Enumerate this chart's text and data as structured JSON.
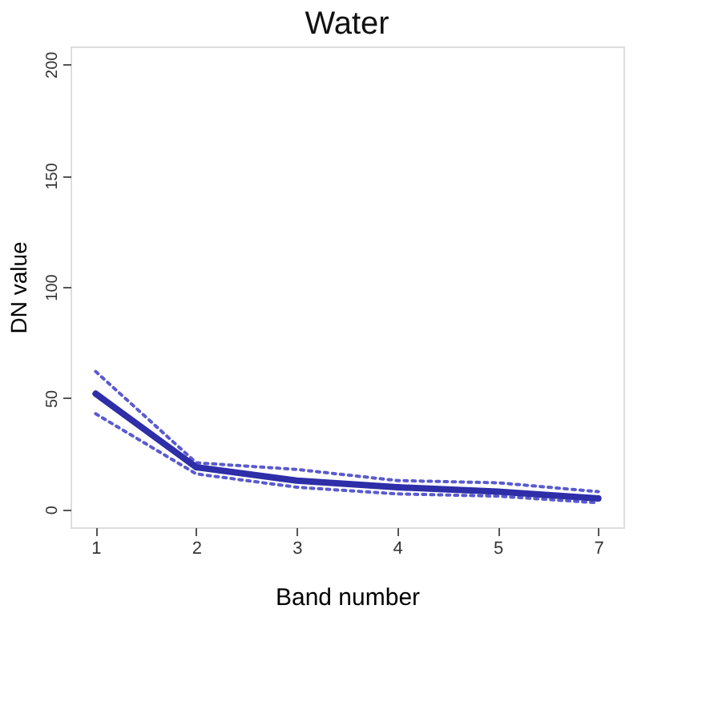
{
  "chart_data": {
    "type": "line",
    "title": "Water",
    "xlabel": "Band number",
    "ylabel": "DN value",
    "categories": [
      "1",
      "2",
      "3",
      "4",
      "5",
      "7"
    ],
    "ylim": [
      -8,
      208
    ],
    "yticks": [
      0,
      50,
      100,
      150,
      200
    ],
    "grid": false,
    "series": [
      {
        "color": "#5a5ad0",
        "line_style": "dotted",
        "values": [
          62,
          21,
          18,
          13,
          12,
          8
        ]
      },
      {
        "color": "#5a5ad0",
        "line_style": "dotted",
        "values": [
          43,
          16,
          10,
          7,
          6,
          3
        ]
      },
      {
        "color": "#2e2ea8",
        "line_style": "solid",
        "values": [
          52,
          19,
          13,
          10,
          8,
          5
        ]
      }
    ]
  }
}
